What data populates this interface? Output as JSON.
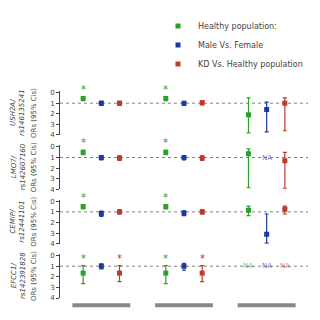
{
  "chart_data": [
    {
      "type": "scatter",
      "title": "USH2A/\nrs146135241",
      "ylabel": "ORs (95% Cis)",
      "categories": [
        null,
        null,
        null
      ],
      "ylim": [
        4,
        -0.15
      ],
      "yticks": [
        0,
        1,
        2,
        3,
        4
      ],
      "grid": false,
      "tick_labels": "y",
      "legend": "top right",
      "ref_line": 1.0,
      "star_label": "*",
      "na_label": "NA",
      "series": [
        {
          "name": "Healthy population:",
          "color": "#2ca02c",
          "marker": "square",
          "values": [
            0.55,
            0.55,
            2.1
          ],
          "lo": [
            0.38,
            0.38,
            0.5
          ],
          "hi": [
            0.75,
            0.75,
            3.8
          ],
          "star": [
            true,
            true,
            false
          ]
        },
        {
          "name": "Male Vs. Female",
          "color": "#1a3a9c",
          "marker": "square",
          "values": [
            1.0,
            1.0,
            1.6
          ],
          "lo": [
            0.82,
            0.85,
            0.9
          ],
          "hi": [
            1.2,
            1.2,
            3.7
          ],
          "star": [
            false,
            false,
            false
          ]
        },
        {
          "name": "KD Vs. Healthy population",
          "color": "#c0392b",
          "marker": "square",
          "values": [
            1.0,
            0.95,
            1.0
          ],
          "lo": [
            0.82,
            0.78,
            0.5
          ],
          "hi": [
            1.22,
            1.15,
            3.6
          ],
          "star": [
            false,
            false,
            false
          ]
        }
      ]
    },
    {
      "type": "scatter",
      "title": "LMO7/\nrs142607160",
      "ylabel": "ORs (95% Cis)",
      "categories": [
        null,
        null,
        null
      ],
      "ylim": [
        4,
        -0.15
      ],
      "yticks": [
        0,
        1,
        2,
        3,
        4
      ],
      "grid": false,
      "tick_labels": "y",
      "ref_line": 1.0,
      "star_label": "*",
      "na_label": "NA",
      "series": [
        {
          "name": "Healthy population:",
          "color": "#2ca02c",
          "marker": "square",
          "values": [
            0.5,
            0.5,
            0.65
          ],
          "lo": [
            0.32,
            0.32,
            0.18
          ],
          "hi": [
            0.72,
            0.72,
            3.85
          ],
          "star": [
            true,
            true,
            false
          ]
        },
        {
          "name": "Male Vs. Female",
          "color": "#1a3a9c",
          "marker": "square",
          "values": [
            1.0,
            1.0,
            null
          ],
          "lo": [
            0.82,
            0.82,
            null
          ],
          "hi": [
            1.22,
            1.22,
            null
          ],
          "star": [
            false,
            false,
            false
          ]
        },
        {
          "name": "KD Vs. Healthy population",
          "color": "#c0392b",
          "marker": "square",
          "values": [
            1.05,
            1.05,
            1.3
          ],
          "lo": [
            0.85,
            0.85,
            0.52
          ],
          "hi": [
            1.28,
            1.28,
            3.9
          ],
          "star": [
            false,
            false,
            false
          ]
        }
      ]
    },
    {
      "type": "scatter",
      "title": "CEMIP/\nrs12441101",
      "ylabel": "ORs (95% Cis)",
      "categories": [
        null,
        null,
        null
      ],
      "ylim": [
        4,
        -0.15
      ],
      "yticks": [
        0,
        1,
        2,
        3,
        4
      ],
      "grid": false,
      "tick_labels": "y",
      "ref_line": 1.0,
      "star_label": "*",
      "na_label": "NA",
      "series": [
        {
          "name": "Healthy population:",
          "color": "#2ca02c",
          "marker": "square",
          "values": [
            0.5,
            0.5,
            0.85
          ],
          "lo": [
            0.33,
            0.33,
            0.45
          ],
          "hi": [
            0.72,
            0.72,
            1.35
          ],
          "star": [
            true,
            true,
            false
          ]
        },
        {
          "name": "Male Vs. Female",
          "color": "#1a3a9c",
          "marker": "square",
          "values": [
            1.15,
            1.1,
            3.1
          ],
          "lo": [
            0.92,
            0.9,
            1.2
          ],
          "hi": [
            1.42,
            1.35,
            3.95
          ],
          "star": [
            false,
            false,
            false
          ]
        },
        {
          "name": "KD Vs. Healthy population",
          "color": "#c0392b",
          "marker": "square",
          "values": [
            1.0,
            1.0,
            0.75
          ],
          "lo": [
            0.82,
            0.82,
            0.45
          ],
          "hi": [
            1.22,
            1.22,
            1.2
          ],
          "star": [
            false,
            false,
            false
          ]
        }
      ]
    },
    {
      "type": "scatter",
      "title": "EFCC1/\nrs142391828",
      "ylabel": "ORs (95% Cis)",
      "categories": [
        null,
        null,
        null
      ],
      "ylim": [
        4,
        -0.15
      ],
      "yticks": [
        0,
        1,
        2,
        3,
        4
      ],
      "grid": false,
      "tick_labels": "y",
      "ref_line": 1.0,
      "star_label": "*",
      "na_label": "NA",
      "series": [
        {
          "name": "Healthy population:",
          "color": "#2ca02c",
          "marker": "square",
          "values": [
            1.65,
            1.65,
            null
          ],
          "lo": [
            0.95,
            0.95,
            null
          ],
          "hi": [
            2.65,
            2.65,
            null
          ],
          "star": [
            true,
            true,
            false
          ]
        },
        {
          "name": "Male Vs. Female",
          "color": "#1a3a9c",
          "marker": "square",
          "values": [
            1.0,
            1.0,
            null
          ],
          "lo": [
            0.78,
            0.72,
            null
          ],
          "hi": [
            1.25,
            1.38,
            null
          ],
          "star": [
            false,
            false,
            false
          ]
        },
        {
          "name": "KD Vs. Healthy population",
          "color": "#c0392b",
          "marker": "square",
          "values": [
            1.65,
            1.65,
            null
          ],
          "lo": [
            0.95,
            0.95,
            null
          ],
          "hi": [
            2.45,
            2.45,
            null
          ],
          "star": [
            true,
            true,
            false
          ]
        }
      ]
    }
  ]
}
